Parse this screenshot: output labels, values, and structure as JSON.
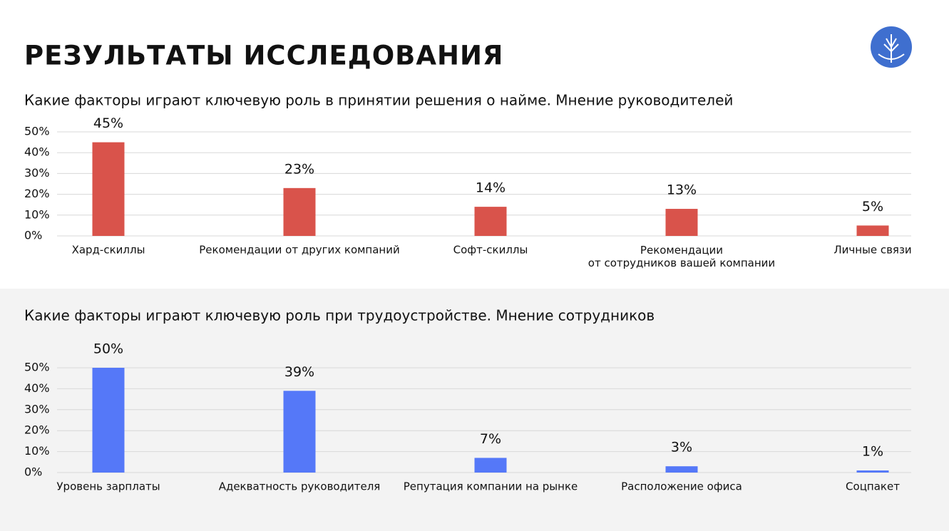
{
  "header": {
    "title": "РЕЗУЛЬТАТЫ ИССЛЕДОВАНИЯ"
  },
  "chart_data": [
    {
      "type": "bar",
      "title": "Какие факторы играют ключевую роль в принятии решения о найме. Мнение руководителей",
      "categories": [
        "Хард-скиллы",
        "Рекомендации от других компаний",
        "Софт-скиллы",
        "Рекомендации\nот сотрудников вашей компании",
        "Личные связи"
      ],
      "values": [
        45,
        23,
        14,
        13,
        5
      ],
      "value_labels": [
        "45%",
        "23%",
        "14%",
        "13%",
        "5%"
      ],
      "color": "#d9534b",
      "ylim": [
        0,
        50
      ],
      "yticks": [
        {
          "value": 0,
          "label": "0%"
        },
        {
          "value": 10,
          "label": "10%"
        },
        {
          "value": 20,
          "label": "20%"
        },
        {
          "value": 30,
          "label": "30%"
        },
        {
          "value": 40,
          "label": "40%"
        },
        {
          "value": 50,
          "label": "50%"
        }
      ],
      "grid": true
    },
    {
      "type": "bar",
      "title": "Какие факторы играют ключевую роль при трудоустройстве. Мнение сотрудников",
      "categories": [
        "Уровень зарплаты",
        "Адекватность руководителя",
        "Репутация компании на рынке",
        "Расположение офиса",
        "Соцпакет"
      ],
      "values": [
        50,
        39,
        7,
        3,
        1
      ],
      "value_labels": [
        "50%",
        "39%",
        "7%",
        "3%",
        "1%"
      ],
      "color": "#5578f8",
      "ylim": [
        0,
        50
      ],
      "yticks": [
        {
          "value": 0,
          "label": "0%"
        },
        {
          "value": 10,
          "label": "10%"
        },
        {
          "value": 20,
          "label": "20%"
        },
        {
          "value": 30,
          "label": "30%"
        },
        {
          "value": 40,
          "label": "40%"
        },
        {
          "value": 50,
          "label": "50%"
        }
      ],
      "grid": true
    }
  ]
}
